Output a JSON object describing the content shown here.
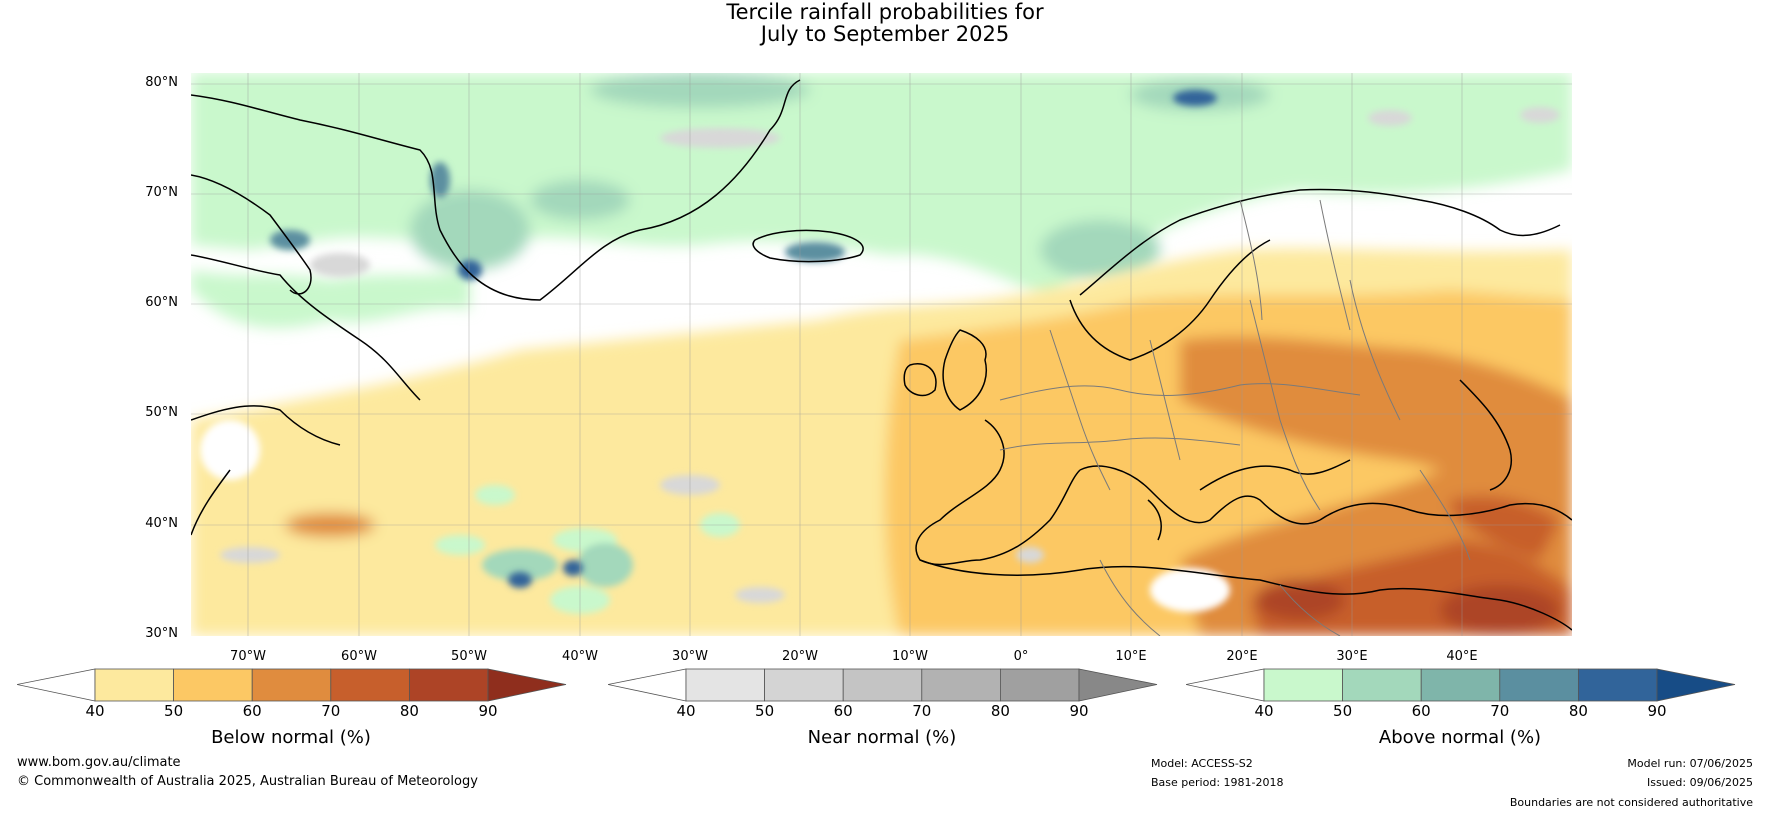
{
  "title": {
    "line1": "Tercile rainfall probabilities for",
    "line2": "July to September 2025"
  },
  "map": {
    "region": "Europe and North Atlantic",
    "lat_labels": [
      "80°N",
      "70°N",
      "60°N",
      "50°N",
      "40°N",
      "30°N"
    ],
    "lon_labels": [
      "70°W",
      "60°W",
      "50°W",
      "40°W",
      "30°W",
      "20°W",
      "10°W",
      "0°",
      "10°E",
      "20°E",
      "30°E",
      "40°E"
    ]
  },
  "colorbars": [
    {
      "title": "Below normal (%)",
      "ticks": [
        "40",
        "50",
        "60",
        "70",
        "80",
        "90"
      ],
      "colors": [
        "#fde99e",
        "#fcc864",
        "#e08c3e",
        "#c75f2c",
        "#ad4426",
        "#8f2e1d"
      ]
    },
    {
      "title": "Near normal (%)",
      "ticks": [
        "40",
        "50",
        "60",
        "70",
        "80",
        "90"
      ],
      "colors": [
        "#e4e4e4",
        "#d4d4d4",
        "#c4c4c4",
        "#b2b2b2",
        "#a0a0a0",
        "#888888"
      ]
    },
    {
      "title": "Above normal (%)",
      "ticks": [
        "40",
        "50",
        "60",
        "70",
        "80",
        "90"
      ],
      "colors": [
        "#c9f8cc",
        "#a3d8bb",
        "#7fb5aa",
        "#5b8fa0",
        "#31649a",
        "#174c86"
      ]
    }
  ],
  "footer": {
    "url": "www.bom.gov.au/climate",
    "copyright": "© Commonwealth of Australia 2025, Australian Bureau of Meteorology",
    "model": "Model: ACCESS-S2",
    "base_period": "Base period: 1981-2018",
    "model_run": "Model run: 07/06/2025",
    "issued": "Issued: 09/06/2025",
    "disclaimer": "Boundaries are not considered authoritative"
  }
}
